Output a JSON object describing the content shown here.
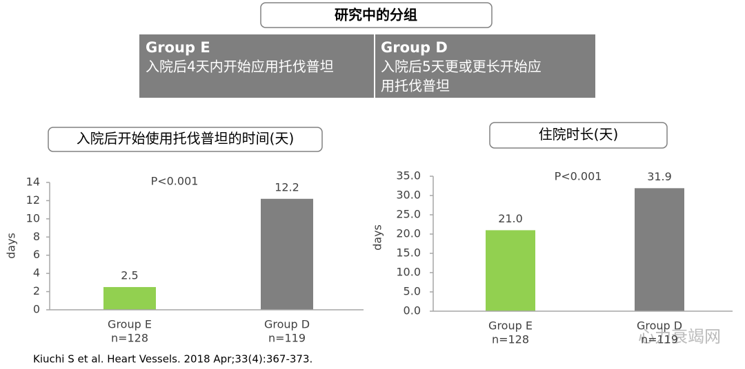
{
  "header": {
    "title": "研究中的分组"
  },
  "table": {
    "columns": [
      {
        "name": "Group E",
        "description": "入院后4天内开始应用托伐普坦"
      },
      {
        "name": "Group D",
        "description": "入院后5天更或更长开始应用托伐普坦"
      }
    ]
  },
  "chart_data": [
    {
      "type": "bar",
      "title": "入院后开始使用托伐普坦的时间(天)",
      "y_label": "days",
      "annotation": "P<0.001",
      "categories": [
        "Group E",
        "Group D"
      ],
      "category_notes": [
        "n=128",
        "n=119"
      ],
      "values": [
        2.5,
        12.2
      ],
      "colors": [
        "#92d050",
        "#808080"
      ],
      "ylim": [
        0,
        14
      ],
      "yticks": [
        0,
        2,
        4,
        6,
        8,
        10,
        12,
        14
      ],
      "grid": false
    },
    {
      "type": "bar",
      "title": "住院时长(天)",
      "y_label": "days",
      "annotation": "P<0.001",
      "categories": [
        "Group E",
        "Group D"
      ],
      "category_notes": [
        "n=128",
        "n=119"
      ],
      "values": [
        21.0,
        31.9
      ],
      "value_labels": [
        "21.0",
        "31.9"
      ],
      "colors": [
        "#92d050",
        "#808080"
      ],
      "ylim": [
        0,
        35
      ],
      "yticks": [
        {
          "value": 0,
          "label": "0.0"
        },
        {
          "value": 5,
          "label": "5.0"
        },
        {
          "value": 10,
          "label": "10.0"
        },
        {
          "value": 15,
          "label": "15.0"
        },
        {
          "value": 20,
          "label": "20.0"
        },
        {
          "value": 25,
          "label": "25.0"
        },
        {
          "value": 30,
          "label": "30.0"
        },
        {
          "value": 35,
          "label": "35.0"
        }
      ],
      "grid": false
    }
  ],
  "citation": "Kiuchi S et al. Heart Vessels. 2018 Apr;33(4):367-373.",
  "watermark": "心力衰竭网"
}
